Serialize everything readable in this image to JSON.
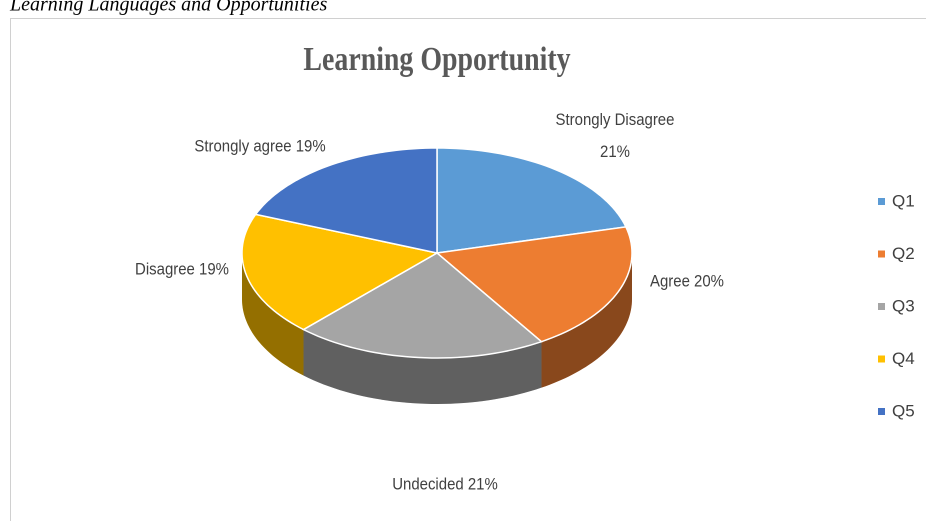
{
  "caption": "Learning Languages and Opportunities",
  "chart_data": {
    "type": "pie3d",
    "title": "Learning Opportunity",
    "categories": [
      "Q1",
      "Q2",
      "Q3",
      "Q4",
      "Q5"
    ],
    "values": [
      21,
      20,
      21,
      19,
      19
    ],
    "value_labels": [
      "Strongly Disagree 21%",
      "Agree 20%",
      "Undecided 21%",
      "Disagree 19%",
      "Strongly agree 19%"
    ],
    "colors": [
      "#5b9bd5",
      "#ed7d31",
      "#a5a5a5",
      "#ffc000",
      "#4472c4"
    ],
    "legend": "right"
  }
}
